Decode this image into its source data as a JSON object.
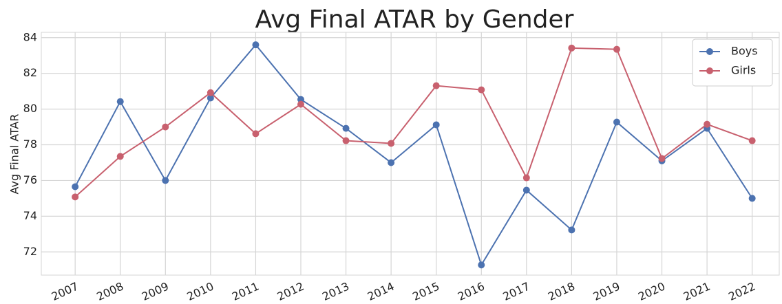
{
  "chart_data": {
    "type": "line",
    "title": "Avg Final ATAR by Gender",
    "ylabel": "Avg Final ATAR",
    "x": [
      2007,
      2008,
      2009,
      2010,
      2011,
      2012,
      2013,
      2014,
      2015,
      2016,
      2017,
      2018,
      2019,
      2020,
      2021,
      2022
    ],
    "xlim": [
      2006.25,
      2022.6
    ],
    "xticks": [
      2007,
      2008,
      2009,
      2010,
      2011,
      2012,
      2013,
      2014,
      2015,
      2016,
      2017,
      2018,
      2019,
      2020,
      2021,
      2022
    ],
    "ylim": [
      70.7,
      84.3
    ],
    "yticks": [
      72,
      74,
      76,
      78,
      80,
      82,
      84
    ],
    "grid": true,
    "legend": "upper right",
    "series": [
      {
        "name": "Boys",
        "color": "#4c72b0",
        "values": [
          75.65,
          80.42,
          76.0,
          80.62,
          83.6,
          80.54,
          78.92,
          77.0,
          79.12,
          71.27,
          75.46,
          73.23,
          79.27,
          77.1,
          78.92,
          75.0
        ]
      },
      {
        "name": "Girls",
        "color": "#c8606e",
        "values": [
          75.08,
          77.35,
          79.0,
          80.92,
          78.62,
          80.27,
          78.23,
          78.08,
          81.31,
          81.08,
          76.15,
          83.42,
          83.35,
          77.23,
          79.15,
          78.23
        ]
      }
    ]
  }
}
